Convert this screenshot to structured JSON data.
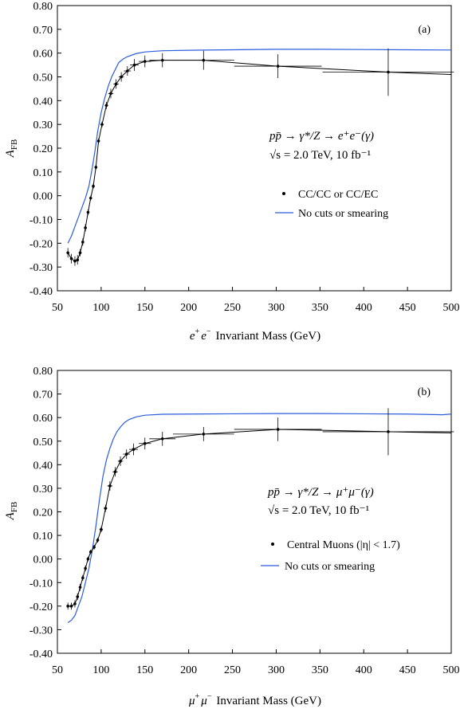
{
  "chart_data": [
    {
      "type": "line",
      "panel_label": "(a)",
      "xlabel_prefix": "e",
      "xlabel_prefix_sup1": "+",
      "xlabel_prefix_mid": "e",
      "xlabel_prefix_sup2": "−",
      "xlabel_text": "Invariant Mass (GeV)",
      "ylabel_main": "A",
      "ylabel_sub": "FB",
      "xlim": [
        50,
        500
      ],
      "ylim": [
        -0.4,
        0.8
      ],
      "xticks": [
        50,
        100,
        150,
        200,
        250,
        300,
        350,
        400,
        450,
        500
      ],
      "xtick_labels": [
        "50",
        "100",
        "150",
        "200",
        "250",
        "300",
        "350",
        "400",
        "450",
        "500"
      ],
      "yticks": [
        -0.4,
        -0.3,
        -0.2,
        -0.1,
        0.0,
        0.1,
        0.2,
        0.3,
        0.4,
        0.5,
        0.6,
        0.7,
        0.8
      ],
      "ytick_labels": [
        "-0.40",
        "-0.30",
        "-0.20",
        "-0.10",
        "0.00",
        "0.10",
        "0.20",
        "0.30",
        "0.40",
        "0.50",
        "0.60",
        "0.70",
        "0.80"
      ],
      "annotation_line1": "pp̄ → γ*/Z → e⁺e⁻(γ)",
      "annotation_line2": "√s = 2.0 TeV, 10 fb⁻¹",
      "grid": false,
      "legend_position": "right",
      "series": [
        {
          "name": "CC/CC or CC/EC",
          "style": "points-with-errorbars",
          "color": "#000000",
          "points": [
            {
              "x": 62,
              "y": -0.24,
              "xerr": 1,
              "yerr": 0.02
            },
            {
              "x": 66,
              "y": -0.265,
              "xerr": 1,
              "yerr": 0.02
            },
            {
              "x": 70,
              "y": -0.275,
              "xerr": 1,
              "yerr": 0.02
            },
            {
              "x": 73,
              "y": -0.27,
              "xerr": 1,
              "yerr": 0.02
            },
            {
              "x": 76,
              "y": -0.24,
              "xerr": 1,
              "yerr": 0.015
            },
            {
              "x": 79,
              "y": -0.195,
              "xerr": 1,
              "yerr": 0.015
            },
            {
              "x": 82,
              "y": -0.135,
              "xerr": 1,
              "yerr": 0.015
            },
            {
              "x": 85,
              "y": -0.07,
              "xerr": 1,
              "yerr": 0.012
            },
            {
              "x": 88,
              "y": -0.01,
              "xerr": 1,
              "yerr": 0.01
            },
            {
              "x": 91,
              "y": 0.04,
              "xerr": 1,
              "yerr": 0.01
            },
            {
              "x": 94,
              "y": 0.12,
              "xerr": 1,
              "yerr": 0.01
            },
            {
              "x": 97,
              "y": 0.23,
              "xerr": 1,
              "yerr": 0.012
            },
            {
              "x": 101,
              "y": 0.3,
              "xerr": 2,
              "yerr": 0.012
            },
            {
              "x": 106,
              "y": 0.38,
              "xerr": 2,
              "yerr": 0.015
            },
            {
              "x": 111,
              "y": 0.43,
              "xerr": 3,
              "yerr": 0.02
            },
            {
              "x": 117,
              "y": 0.47,
              "xerr": 3,
              "yerr": 0.02
            },
            {
              "x": 123,
              "y": 0.5,
              "xerr": 3,
              "yerr": 0.02
            },
            {
              "x": 130,
              "y": 0.525,
              "xerr": 4,
              "yerr": 0.02
            },
            {
              "x": 138,
              "y": 0.55,
              "xerr": 5,
              "yerr": 0.025
            },
            {
              "x": 150,
              "y": 0.565,
              "xerr": 7,
              "yerr": 0.025
            },
            {
              "x": 170,
              "y": 0.57,
              "xerr": 15,
              "yerr": 0.03
            },
            {
              "x": 217,
              "y": 0.57,
              "xerr": 35,
              "yerr": 0.04
            },
            {
              "x": 302,
              "y": 0.545,
              "xerr": 50,
              "yerr": 0.05
            },
            {
              "x": 428,
              "y": 0.52,
              "xerr": 75,
              "yerr": 0.1
            }
          ]
        },
        {
          "name": "No cuts or smearing",
          "style": "line",
          "color": "#2a5cdc",
          "x": [
            62,
            66,
            70,
            74,
            78,
            82,
            86,
            90,
            93,
            96,
            100,
            104,
            108,
            112,
            116,
            120,
            125,
            130,
            140,
            150,
            170,
            200,
            250,
            300,
            350,
            400,
            450,
            500
          ],
          "y": [
            -0.2,
            -0.17,
            -0.13,
            -0.09,
            -0.05,
            -0.01,
            0.04,
            0.12,
            0.19,
            0.27,
            0.35,
            0.41,
            0.46,
            0.5,
            0.53,
            0.56,
            0.575,
            0.585,
            0.598,
            0.605,
            0.61,
            0.612,
            0.614,
            0.616,
            0.616,
            0.615,
            0.614,
            0.613
          ]
        },
        {
          "name": "fit",
          "style": "line",
          "color": "#000000",
          "x": [
            62,
            66,
            70,
            73,
            76,
            79,
            82,
            85,
            88,
            91,
            94,
            97,
            101,
            106,
            111,
            117,
            123,
            130,
            138,
            150,
            170,
            217,
            302,
            428,
            500
          ],
          "y": [
            -0.24,
            -0.265,
            -0.275,
            -0.27,
            -0.24,
            -0.195,
            -0.135,
            -0.07,
            -0.01,
            0.04,
            0.12,
            0.23,
            0.3,
            0.38,
            0.43,
            0.47,
            0.5,
            0.525,
            0.55,
            0.565,
            0.57,
            0.57,
            0.545,
            0.52,
            0.51
          ]
        }
      ]
    },
    {
      "type": "line",
      "panel_label": "(b)",
      "xlabel_prefix": "μ",
      "xlabel_prefix_sup1": "+",
      "xlabel_prefix_mid": "μ",
      "xlabel_prefix_sup2": "−",
      "xlabel_text": "Invariant Mass (GeV)",
      "ylabel_main": "A",
      "ylabel_sub": "FB",
      "xlim": [
        50,
        500
      ],
      "ylim": [
        -0.4,
        0.8
      ],
      "xticks": [
        50,
        100,
        150,
        200,
        250,
        300,
        350,
        400,
        450,
        500
      ],
      "xtick_labels": [
        "50",
        "100",
        "150",
        "200",
        "250",
        "300",
        "350",
        "400",
        "450",
        "500"
      ],
      "yticks": [
        -0.4,
        -0.3,
        -0.2,
        -0.1,
        0.0,
        0.1,
        0.2,
        0.3,
        0.4,
        0.5,
        0.6,
        0.7,
        0.8
      ],
      "ytick_labels": [
        "-0.40",
        "-0.30",
        "-0.20",
        "-0.10",
        "0.00",
        "0.10",
        "0.20",
        "0.30",
        "0.40",
        "0.50",
        "0.60",
        "0.70",
        "0.80"
      ],
      "annotation_line1": "pp̄ → γ*/Z → μ⁺μ⁻(γ)",
      "annotation_line2": "√s = 2.0 TeV, 10 fb⁻¹",
      "grid": false,
      "legend_position": "right",
      "series": [
        {
          "name": "Central Muons (|η| < 1.7)",
          "style": "points-with-errorbars",
          "color": "#000000",
          "points": [
            {
              "x": 62,
              "y": -0.2,
              "xerr": 1,
              "yerr": 0.015
            },
            {
              "x": 66,
              "y": -0.2,
              "xerr": 1,
              "yerr": 0.015
            },
            {
              "x": 70,
              "y": -0.19,
              "xerr": 1,
              "yerr": 0.015
            },
            {
              "x": 73,
              "y": -0.16,
              "xerr": 1,
              "yerr": 0.015
            },
            {
              "x": 76,
              "y": -0.12,
              "xerr": 1,
              "yerr": 0.015
            },
            {
              "x": 79,
              "y": -0.08,
              "xerr": 1,
              "yerr": 0.012
            },
            {
              "x": 82,
              "y": -0.04,
              "xerr": 1,
              "yerr": 0.012
            },
            {
              "x": 85,
              "y": 0.0,
              "xerr": 1,
              "yerr": 0.01
            },
            {
              "x": 88,
              "y": 0.03,
              "xerr": 1,
              "yerr": 0.01
            },
            {
              "x": 92,
              "y": 0.05,
              "xerr": 1,
              "yerr": 0.01
            },
            {
              "x": 96,
              "y": 0.08,
              "xerr": 1,
              "yerr": 0.01
            },
            {
              "x": 100,
              "y": 0.125,
              "xerr": 2,
              "yerr": 0.012
            },
            {
              "x": 105,
              "y": 0.215,
              "xerr": 2,
              "yerr": 0.015
            },
            {
              "x": 110,
              "y": 0.31,
              "xerr": 3,
              "yerr": 0.02
            },
            {
              "x": 116,
              "y": 0.37,
              "xerr": 3,
              "yerr": 0.02
            },
            {
              "x": 122,
              "y": 0.415,
              "xerr": 3,
              "yerr": 0.02
            },
            {
              "x": 129,
              "y": 0.445,
              "xerr": 4,
              "yerr": 0.02
            },
            {
              "x": 137,
              "y": 0.465,
              "xerr": 5,
              "yerr": 0.025
            },
            {
              "x": 150,
              "y": 0.49,
              "xerr": 7,
              "yerr": 0.025
            },
            {
              "x": 170,
              "y": 0.51,
              "xerr": 15,
              "yerr": 0.03
            },
            {
              "x": 217,
              "y": 0.53,
              "xerr": 35,
              "yerr": 0.03
            },
            {
              "x": 302,
              "y": 0.55,
              "xerr": 50,
              "yerr": 0.05
            },
            {
              "x": 428,
              "y": 0.54,
              "xerr": 75,
              "yerr": 0.1
            }
          ]
        },
        {
          "name": "No cuts or smearing",
          "style": "line",
          "color": "#2a5cdc",
          "x": [
            62,
            66,
            70,
            74,
            78,
            82,
            86,
            90,
            94,
            98,
            102,
            106,
            110,
            114,
            118,
            122,
            127,
            132,
            140,
            150,
            170,
            200,
            250,
            300,
            350,
            400,
            450,
            490,
            500
          ],
          "y": [
            -0.27,
            -0.26,
            -0.24,
            -0.2,
            -0.16,
            -0.1,
            -0.04,
            0.04,
            0.14,
            0.25,
            0.35,
            0.42,
            0.47,
            0.51,
            0.54,
            0.56,
            0.58,
            0.592,
            0.603,
            0.61,
            0.614,
            0.615,
            0.616,
            0.617,
            0.617,
            0.616,
            0.615,
            0.612,
            0.615
          ]
        },
        {
          "name": "fit",
          "style": "line",
          "color": "#000000",
          "x": [
            62,
            66,
            70,
            73,
            76,
            79,
            82,
            85,
            88,
            92,
            96,
            100,
            105,
            110,
            116,
            122,
            129,
            137,
            150,
            170,
            217,
            302,
            428,
            500
          ],
          "y": [
            -0.2,
            -0.2,
            -0.19,
            -0.16,
            -0.12,
            -0.08,
            -0.04,
            0.0,
            0.03,
            0.05,
            0.08,
            0.125,
            0.215,
            0.31,
            0.37,
            0.415,
            0.445,
            0.465,
            0.49,
            0.51,
            0.53,
            0.55,
            0.54,
            0.535
          ]
        }
      ]
    }
  ]
}
